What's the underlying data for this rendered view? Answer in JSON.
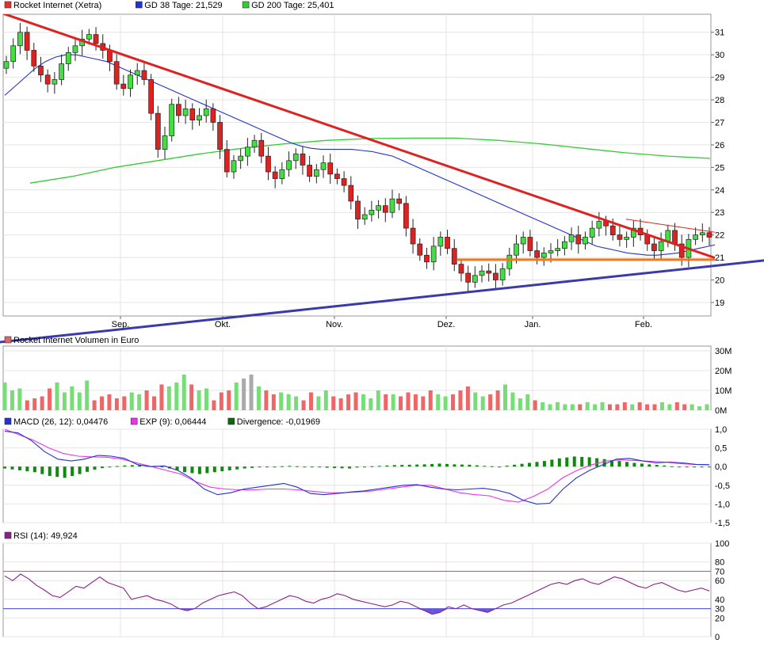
{
  "chart_data": [
    {
      "type": "candlestick",
      "legend": [
        {
          "label": "Rocket Internet (Xetra)",
          "color": "#e03030"
        },
        {
          "label": "GD 38 Tage: 21,529",
          "color": "#2233cc"
        },
        {
          "label": "GD 200 Tage: 25,401",
          "color": "#33cc33"
        }
      ],
      "x_tick_labels": [
        "Sep.",
        "Okt.",
        "Nov.",
        "Dez.",
        "Jan.",
        "Feb."
      ],
      "y_tick_labels": [
        "19",
        "20",
        "21",
        "22",
        "23",
        "24",
        "25",
        "26",
        "27",
        "28",
        "29",
        "30",
        "31"
      ],
      "ylim": [
        18.4,
        31.8
      ],
      "grid": true,
      "closes": [
        29.7,
        30.4,
        31.0,
        30.2,
        29.5,
        29.1,
        28.7,
        28.9,
        29.6,
        30.1,
        30.4,
        30.7,
        30.9,
        30.5,
        30.2,
        29.7,
        28.7,
        28.5,
        29.1,
        29.3,
        28.9,
        27.4,
        25.8,
        26.4,
        27.8,
        27.3,
        27.6,
        27.1,
        27.3,
        27.6,
        27.0,
        25.8,
        24.8,
        25.3,
        25.5,
        25.9,
        26.2,
        25.5,
        24.8,
        24.5,
        24.9,
        25.3,
        25.6,
        25.1,
        24.6,
        24.9,
        25.2,
        24.7,
        24.5,
        24.2,
        23.5,
        22.7,
        22.9,
        23.1,
        23.3,
        23.0,
        23.6,
        23.4,
        22.3,
        21.6,
        21.1,
        20.8,
        21.5,
        21.9,
        21.4,
        20.7,
        20.3,
        19.9,
        20.2,
        20.4,
        20.3,
        20.0,
        20.5,
        21.1,
        21.6,
        21.9,
        21.3,
        21.0,
        21.2,
        21.3,
        21.4,
        21.7,
        22.0,
        21.6,
        21.9,
        22.3,
        22.6,
        22.4,
        22.0,
        21.8,
        21.9,
        22.3,
        22.0,
        21.6,
        21.3,
        21.7,
        22.2,
        21.6,
        21.0,
        21.8,
        22.0,
        22.1,
        21.9
      ],
      "ma38": [
        28.2,
        28.6,
        29.0,
        29.4,
        29.7,
        29.9,
        30.0,
        30.0,
        29.9,
        29.8,
        29.7,
        29.5,
        29.3,
        29.1,
        28.9,
        28.7,
        28.5,
        28.3,
        28.1,
        27.9,
        27.7,
        27.5,
        27.3,
        27.1,
        26.9,
        26.7,
        26.5,
        26.3,
        26.1,
        25.95,
        25.85,
        25.8,
        25.8,
        25.8,
        25.8,
        25.75,
        25.7,
        25.6,
        25.5,
        25.3,
        25.1,
        24.9,
        24.7,
        24.5,
        24.3,
        24.1,
        23.9,
        23.7,
        23.5,
        23.3,
        23.1,
        22.9,
        22.7,
        22.5,
        22.3,
        22.1,
        21.9,
        21.7,
        21.5,
        21.4,
        21.3,
        21.2,
        21.15,
        21.1,
        21.1,
        21.15,
        21.2,
        21.3,
        21.4,
        21.5,
        21.6,
        21.7
      ],
      "ma200": [
        24.3,
        24.6,
        25.0,
        25.3,
        25.6,
        25.85,
        26.05,
        26.2,
        26.28,
        26.3,
        26.3,
        26.2,
        26.05,
        25.85,
        25.65,
        25.5,
        25.4
      ],
      "trendlines": [
        {
          "color": "#dd2222",
          "from": [
            -10,
            32.0
          ],
          "to": [
            1000,
            19.8
          ]
        },
        {
          "color": "#3a3aaa",
          "from": [
            -10,
            17.2
          ],
          "to": [
            1000,
            21.0
          ]
        },
        {
          "color": "#ee7722",
          "from": [
            577,
            20.9
          ],
          "to": [
            964,
            20.9
          ]
        },
        {
          "color": "#dd2222",
          "from": [
            790,
            22.7
          ],
          "to": [
            964,
            21.8
          ]
        }
      ]
    },
    {
      "type": "bar",
      "title": "Rocket Internet Volumen in Euro",
      "y_tick_labels": [
        "30M",
        "20M",
        "10M",
        "0M"
      ],
      "ylim": [
        0,
        30
      ],
      "values": [
        14,
        10,
        11,
        5,
        6,
        7,
        11,
        14,
        9,
        12,
        9,
        15,
        5,
        7,
        8,
        6,
        7,
        9,
        8,
        10,
        7,
        13,
        12,
        14,
        18,
        13,
        10,
        11,
        5,
        9,
        10,
        14,
        16,
        18,
        12,
        10,
        8,
        9,
        8,
        7,
        5,
        9,
        7,
        10,
        7,
        6,
        8,
        9,
        8,
        6,
        10,
        8,
        8,
        7,
        9,
        8,
        7,
        10,
        8,
        7,
        8,
        10,
        12,
        9,
        7,
        8,
        10,
        13,
        9,
        6,
        8,
        5,
        4,
        3,
        4,
        3,
        3,
        3,
        4,
        3,
        4,
        3,
        3,
        4,
        3,
        4,
        3,
        3,
        4,
        3,
        4,
        3,
        3,
        2,
        3
      ],
      "colors": [
        "#ee6666",
        "#77dd77",
        "#ee6666",
        "#aaaaaa"
      ]
    },
    {
      "type": "line",
      "legend": [
        {
          "label": "MACD (26, 12): 0,04476",
          "color": "#2233cc"
        },
        {
          "label": "EXP (9): 0,06444",
          "color": "#ee33ee"
        },
        {
          "label": "Divergence: -0,01969",
          "color": "#116611"
        }
      ],
      "y_tick_labels": [
        "1,0",
        "0,5",
        "0,0",
        "-0,5",
        "-1,0",
        "-1,5"
      ],
      "ylim": [
        -1.5,
        1.0
      ],
      "macd": [
        0.95,
        0.9,
        0.7,
        0.4,
        0.2,
        0.15,
        0.2,
        0.3,
        0.28,
        0.22,
        0.05,
        0.0,
        0.02,
        -0.1,
        -0.3,
        -0.6,
        -0.75,
        -0.7,
        -0.6,
        -0.55,
        -0.5,
        -0.45,
        -0.55,
        -0.72,
        -0.75,
        -0.72,
        -0.68,
        -0.65,
        -0.6,
        -0.55,
        -0.5,
        -0.48,
        -0.55,
        -0.6,
        -0.62,
        -0.6,
        -0.58,
        -0.63,
        -0.72,
        -0.9,
        -1.0,
        -0.98,
        -0.6,
        -0.3,
        -0.1,
        0.05,
        0.2,
        0.22,
        0.15,
        0.1,
        0.12,
        0.1,
        0.06,
        0.05
      ],
      "signal": [
        1.0,
        0.85,
        0.7,
        0.5,
        0.35,
        0.28,
        0.26,
        0.25,
        0.2,
        0.1,
        0.0,
        -0.1,
        -0.2,
        -0.4,
        -0.55,
        -0.6,
        -0.62,
        -0.62,
        -0.6,
        -0.6,
        -0.62,
        -0.66,
        -0.7,
        -0.7,
        -0.68,
        -0.65,
        -0.6,
        -0.55,
        -0.5,
        -0.5,
        -0.6,
        -0.7,
        -0.75,
        -0.78,
        -0.9,
        -0.95,
        -0.8,
        -0.6,
        -0.3,
        -0.1,
        0.05,
        0.15,
        0.18,
        0.16,
        0.14,
        0.12,
        0.08,
        0.06,
        0.05
      ],
      "divergence": [
        -0.05,
        -0.1,
        -0.15,
        -0.25,
        -0.3,
        -0.2,
        -0.08,
        0.0,
        0.03,
        0.05,
        0.02,
        -0.05,
        -0.15,
        -0.2,
        -0.15,
        -0.1,
        -0.05,
        -0.02,
        0.0,
        0.02,
        0.0,
        -0.02,
        -0.04,
        -0.05,
        0.0,
        0.02,
        0.04,
        0.05,
        0.06,
        0.08,
        0.06,
        0.05,
        0.02,
        0.0,
        0.05,
        0.1,
        0.15,
        0.22,
        0.27,
        0.25,
        0.2,
        0.15,
        0.1,
        0.06,
        0.03,
        -0.01,
        -0.02,
        -0.02
      ]
    },
    {
      "type": "line",
      "legend": [
        {
          "label": "RSI (14): 49,924",
          "color": "#882288"
        }
      ],
      "y_tick_labels": [
        "100",
        "80",
        "70",
        "60",
        "40",
        "30",
        "20",
        "0"
      ],
      "ylim": [
        0,
        100
      ],
      "values": [
        65,
        60,
        67,
        62,
        55,
        50,
        44,
        42,
        48,
        54,
        52,
        58,
        64,
        58,
        55,
        52,
        40,
        42,
        44,
        40,
        38,
        35,
        30,
        28,
        30,
        36,
        40,
        44,
        46,
        48,
        44,
        36,
        30,
        32,
        36,
        40,
        44,
        42,
        38,
        36,
        40,
        42,
        46,
        44,
        40,
        38,
        36,
        34,
        32,
        34,
        38,
        36,
        32,
        28,
        24,
        26,
        32,
        30,
        34,
        30,
        28,
        26,
        30,
        34,
        36,
        40,
        44,
        48,
        52,
        56,
        58,
        56,
        60,
        62,
        58,
        56,
        60,
        64,
        62,
        58,
        54,
        52,
        56,
        58,
        54,
        50,
        48,
        50,
        52,
        49
      ]
    }
  ]
}
